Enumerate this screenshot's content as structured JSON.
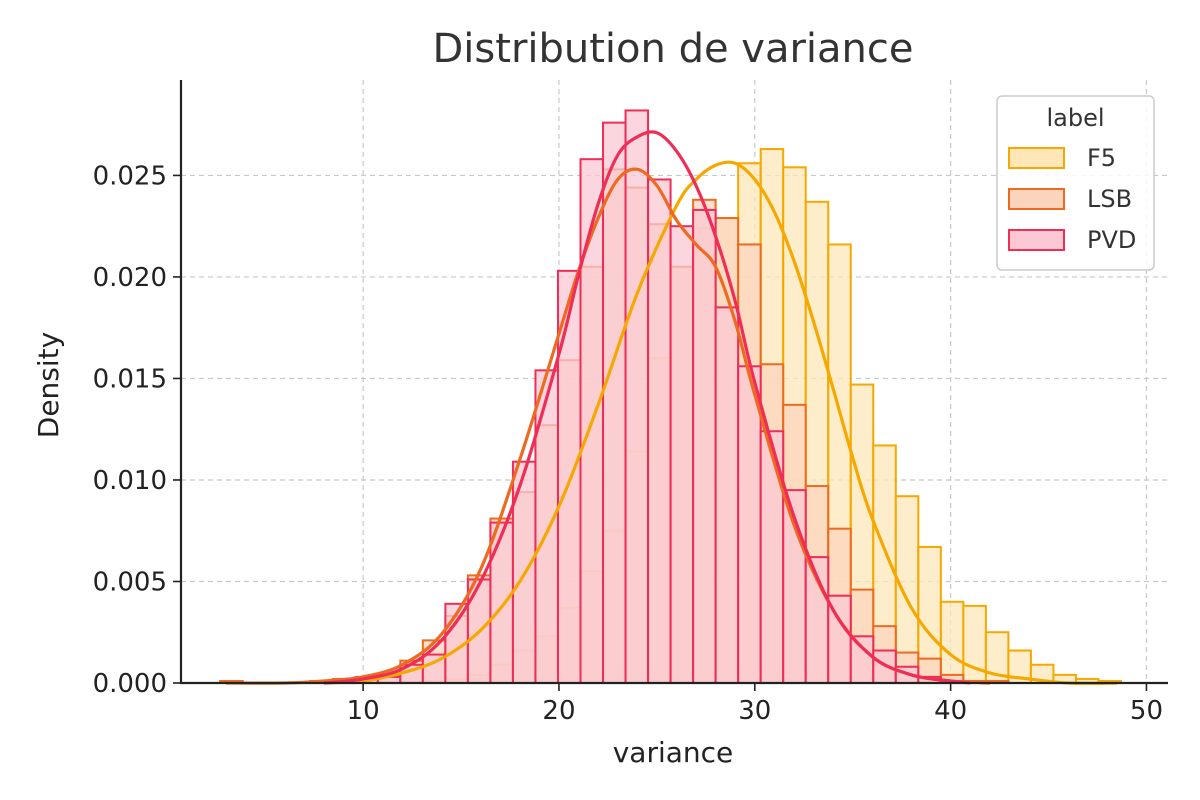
{
  "chart_data": {
    "type": "histogram",
    "title": "Distribution de variance",
    "xlabel": "variance",
    "ylabel": "Density",
    "xlim": [
      0.7,
      51.1
    ],
    "ylim": [
      0,
      0.0297
    ],
    "xticks": [
      10,
      20,
      30,
      40,
      50
    ],
    "xtick_labels": [
      "10",
      "20",
      "30",
      "40",
      "50"
    ],
    "yticks": [
      0.0,
      0.005,
      0.01,
      0.015,
      0.02,
      0.025
    ],
    "ytick_labels": [
      "0.000",
      "0.005",
      "0.010",
      "0.015",
      "0.020",
      "0.025"
    ],
    "grid": true,
    "legend": {
      "title": "label",
      "position": "top-right"
    },
    "bins": {
      "start": 2.7,
      "width": 1.15,
      "count": 40
    },
    "series": [
      {
        "name": "F5",
        "color": "#f7a800",
        "fill": "#fde7b8",
        "density": [
          0,
          0,
          0,
          0,
          0,
          0,
          0,
          0,
          0,
          0.0001,
          0.0002,
          0.0004,
          0.0009,
          0.0016,
          0.0023,
          0.0037,
          0.0055,
          0.0075,
          0.0114,
          0.016,
          0.0205,
          0.0224,
          0.0229,
          0.0256,
          0.0263,
          0.0254,
          0.0237,
          0.0216,
          0.0147,
          0.0117,
          0.0092,
          0.0067,
          0.004,
          0.0038,
          0.0025,
          0.0016,
          0.0009,
          0.0004,
          0.0002,
          0.0001
        ],
        "kde": [
          [
            8,
            0.0
          ],
          [
            10,
            0.0001
          ],
          [
            12,
            0.0005
          ],
          [
            14,
            0.0012
          ],
          [
            16,
            0.0026
          ],
          [
            18,
            0.005
          ],
          [
            20,
            0.0087
          ],
          [
            22,
            0.0137
          ],
          [
            24,
            0.0192
          ],
          [
            26,
            0.0235
          ],
          [
            27,
            0.0248
          ],
          [
            28,
            0.0255
          ],
          [
            29,
            0.0256
          ],
          [
            30,
            0.0248
          ],
          [
            31,
            0.0232
          ],
          [
            32,
            0.0208
          ],
          [
            33,
            0.0178
          ],
          [
            34,
            0.0145
          ],
          [
            35,
            0.0111
          ],
          [
            36,
            0.0081
          ],
          [
            38,
            0.0037
          ],
          [
            40,
            0.0014
          ],
          [
            42,
            0.0005
          ],
          [
            44,
            0.0002
          ],
          [
            46,
            0.0
          ],
          [
            48.5,
            0.0
          ]
        ]
      },
      {
        "name": "LSB",
        "color": "#ee6a20",
        "fill": "#fbd4bd",
        "density": [
          0.0001,
          0.0,
          0.0,
          0.0,
          0.0001,
          0.0002,
          0.0003,
          0.0004,
          0.0011,
          0.0021,
          0.0033,
          0.0053,
          0.0081,
          0.0094,
          0.0127,
          0.0159,
          0.0205,
          0.0253,
          0.0244,
          0.0226,
          0.0205,
          0.0238,
          0.0229,
          0.0216,
          0.0157,
          0.0137,
          0.0097,
          0.0076,
          0.0046,
          0.0028,
          0.0015,
          0.0012,
          0.0004,
          0.0001,
          0.0001,
          0.0,
          0.0,
          0.0,
          0.0,
          0.0
        ],
        "kde": [
          [
            3,
            0.0
          ],
          [
            6,
            0.0
          ],
          [
            8,
            0.0001
          ],
          [
            10,
            0.0003
          ],
          [
            12,
            0.0009
          ],
          [
            14,
            0.0024
          ],
          [
            16,
            0.0056
          ],
          [
            18,
            0.011
          ],
          [
            20,
            0.0172
          ],
          [
            21,
            0.0203
          ],
          [
            22,
            0.0229
          ],
          [
            23,
            0.0248
          ],
          [
            24,
            0.0253
          ],
          [
            25,
            0.0245
          ],
          [
            26,
            0.0228
          ],
          [
            27,
            0.0216
          ],
          [
            28,
            0.0205
          ],
          [
            29,
            0.0178
          ],
          [
            30,
            0.0142
          ],
          [
            32,
            0.0078
          ],
          [
            34,
            0.0036
          ],
          [
            36,
            0.0013
          ],
          [
            38,
            0.0004
          ],
          [
            40,
            0.0001
          ],
          [
            42,
            0.0
          ]
        ]
      },
      {
        "name": "PVD",
        "color": "#ef2d56",
        "fill": "#fbc8d3",
        "density": [
          0,
          0,
          0,
          0,
          0,
          0,
          0.0002,
          0.0003,
          0.0009,
          0.0014,
          0.0039,
          0.0051,
          0.0079,
          0.0109,
          0.0154,
          0.0203,
          0.0258,
          0.0276,
          0.0282,
          0.0248,
          0.0225,
          0.0233,
          0.0185,
          0.0156,
          0.0124,
          0.0095,
          0.0062,
          0.0043,
          0.0023,
          0.0016,
          0.0008,
          0.0003,
          0.0001,
          0,
          0,
          0,
          0,
          0,
          0,
          0
        ],
        "kde": [
          [
            8,
            0.0
          ],
          [
            10,
            0.0002
          ],
          [
            12,
            0.0007
          ],
          [
            14,
            0.0021
          ],
          [
            16,
            0.005
          ],
          [
            18,
            0.0097
          ],
          [
            20,
            0.0162
          ],
          [
            21,
            0.0201
          ],
          [
            22,
            0.0236
          ],
          [
            23,
            0.026
          ],
          [
            24,
            0.0269
          ],
          [
            25,
            0.0271
          ],
          [
            26,
            0.0262
          ],
          [
            27,
            0.0245
          ],
          [
            28,
            0.022
          ],
          [
            29,
            0.0188
          ],
          [
            30,
            0.0148
          ],
          [
            32,
            0.0082
          ],
          [
            34,
            0.0036
          ],
          [
            36,
            0.0013
          ],
          [
            38,
            0.0004
          ],
          [
            40,
            0.0001
          ],
          [
            41,
            0.0
          ]
        ]
      }
    ]
  }
}
